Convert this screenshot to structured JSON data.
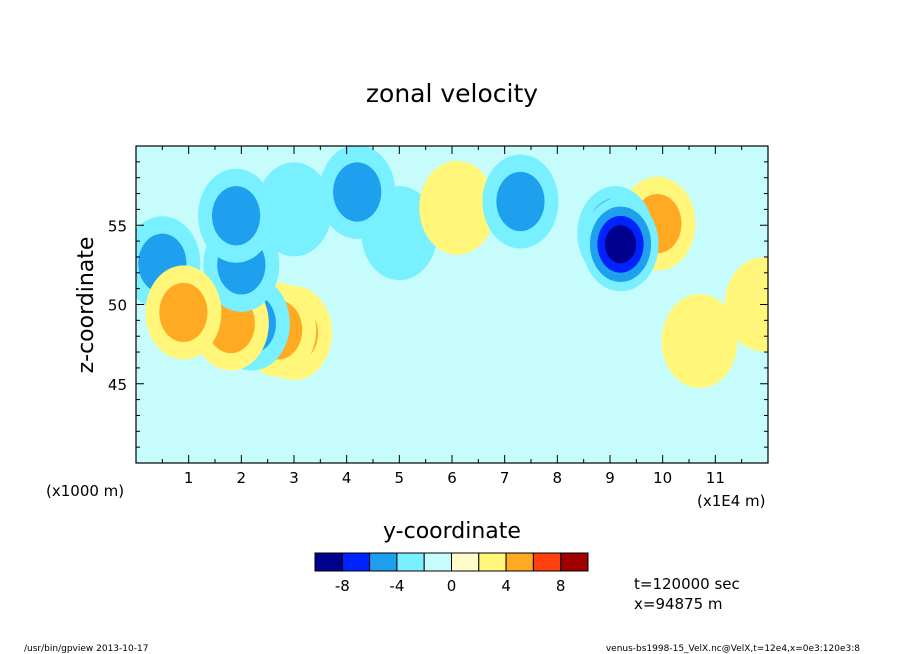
{
  "chart_data": {
    "type": "heatmap",
    "title": "zonal velocity",
    "xlabel": "y-coordinate",
    "ylabel": "z-coordinate",
    "x_unit_label": "(x1E4 m)",
    "y_unit_label": "(x1000 m)",
    "xlim": [
      0,
      12
    ],
    "ylim": [
      40,
      60
    ],
    "x_ticks": [
      "1",
      "2",
      "3",
      "4",
      "5",
      "6",
      "7",
      "8",
      "9",
      "10",
      "11"
    ],
    "y_ticks": [
      "45",
      "50",
      "55"
    ],
    "colorbar": {
      "levels": [
        -10,
        -8,
        -6,
        -4,
        -2,
        0,
        2,
        4,
        6,
        8,
        10
      ],
      "tick_labels": [
        "-8",
        "-4",
        "0",
        "4",
        "8"
      ],
      "colors": [
        "#00008f",
        "#0022ff",
        "#1ea0ee",
        "#78f0ff",
        "#c6fcfc",
        "#fffccc",
        "#fff67a",
        "#ffaa22",
        "#ff4010",
        "#a00000"
      ]
    },
    "features": [
      {
        "y": 9.2,
        "z": 53.8,
        "value": -8.5
      },
      {
        "y": 9.1,
        "z": 54.5,
        "value": -6.2
      },
      {
        "y": 4.2,
        "z": 57.1,
        "value": -5.5
      },
      {
        "y": 1.9,
        "z": 55.6,
        "value": -5.2
      },
      {
        "y": 2.0,
        "z": 52.5,
        "value": -4.8
      },
      {
        "y": 0.5,
        "z": 52.6,
        "value": -4.6
      },
      {
        "y": 7.3,
        "z": 56.5,
        "value": -4.2
      },
      {
        "y": 2.2,
        "z": 48.8,
        "value": -4.6
      },
      {
        "y": 3.0,
        "z": 56.0,
        "value": -2.8
      },
      {
        "y": 5.0,
        "z": 54.5,
        "value": -2.6
      },
      {
        "y": 0.9,
        "z": 49.5,
        "value": 5.2
      },
      {
        "y": 1.8,
        "z": 48.8,
        "value": 4.6
      },
      {
        "y": 2.7,
        "z": 48.4,
        "value": 4.4
      },
      {
        "y": 3.0,
        "z": 48.2,
        "value": 4.3
      },
      {
        "y": 9.9,
        "z": 55.1,
        "value": 4.4
      },
      {
        "y": 6.1,
        "z": 56.1,
        "value": 2.8
      },
      {
        "y": 11.9,
        "z": 50.0,
        "value": 2.6
      },
      {
        "y": 10.7,
        "z": 47.7,
        "value": 2.4
      }
    ]
  },
  "info": {
    "time": "t=120000 sec",
    "position": "x=94875 m"
  },
  "footer": {
    "left": "/usr/bin/gpview   2013-10-17",
    "right": "venus-bs1998-15_VelX.nc@VelX,t=12e4,x=0e3:120e3:8"
  }
}
